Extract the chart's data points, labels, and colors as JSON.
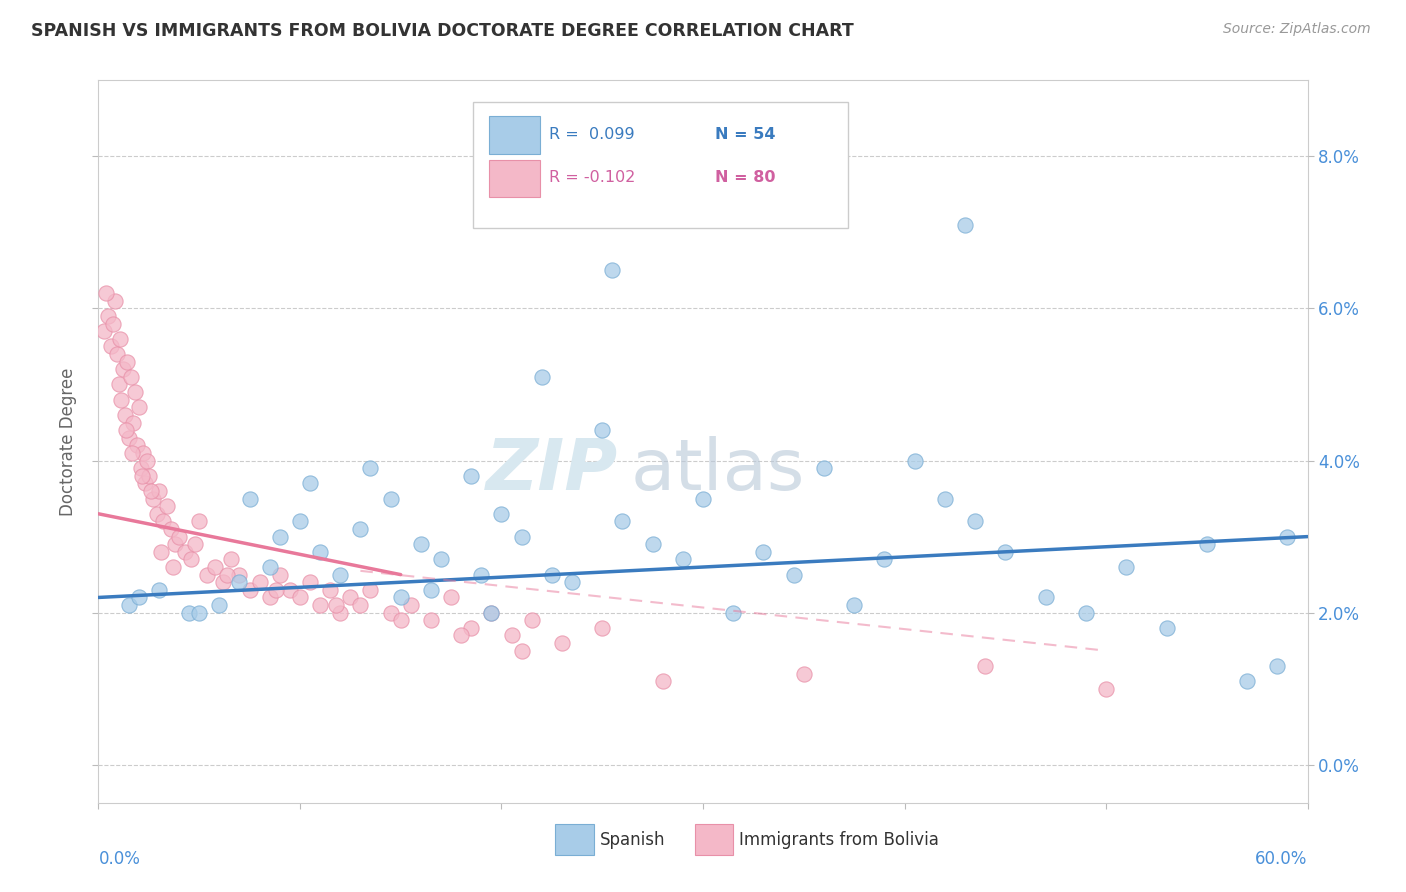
{
  "title": "SPANISH VS IMMIGRANTS FROM BOLIVIA DOCTORATE DEGREE CORRELATION CHART",
  "source": "Source: ZipAtlas.com",
  "ylabel": "Doctorate Degree",
  "ytick_vals": [
    0.0,
    2.0,
    4.0,
    6.0,
    8.0
  ],
  "xlim": [
    0.0,
    60.0
  ],
  "ylim": [
    -0.5,
    9.0
  ],
  "blue_color": "#a8cce8",
  "pink_color": "#f4b8c8",
  "blue_edge": "#7aaed4",
  "pink_edge": "#e890a8",
  "blue_line_color": "#3a7bbf",
  "pink_line_color": "#e8789a",
  "background_color": "#ffffff",
  "watermark_zip": "ZIP",
  "watermark_atlas": "atlas",
  "blue_r": "R =  0.099",
  "blue_n": "N = 54",
  "pink_r": "R = -0.102",
  "pink_n": "N = 80",
  "blue_scatter_x": [
    1.5,
    2.0,
    3.0,
    4.5,
    6.0,
    7.0,
    8.5,
    9.0,
    10.0,
    11.0,
    12.0,
    13.0,
    14.5,
    15.0,
    16.0,
    17.0,
    18.5,
    19.0,
    20.0,
    21.0,
    22.0,
    23.5,
    25.0,
    26.0,
    27.5,
    29.0,
    30.0,
    31.5,
    33.0,
    34.5,
    36.0,
    37.5,
    39.0,
    40.5,
    42.0,
    43.5,
    45.0,
    47.0,
    49.0,
    51.0,
    53.0,
    55.0,
    57.0,
    59.0,
    5.0,
    7.5,
    10.5,
    13.5,
    16.5,
    19.5,
    22.5,
    25.5,
    43.0,
    58.5
  ],
  "blue_scatter_y": [
    2.1,
    2.2,
    2.3,
    2.0,
    2.1,
    2.4,
    2.6,
    3.0,
    3.2,
    2.8,
    2.5,
    3.1,
    3.5,
    2.2,
    2.9,
    2.7,
    3.8,
    2.5,
    3.3,
    3.0,
    5.1,
    2.4,
    4.4,
    3.2,
    2.9,
    2.7,
    3.5,
    2.0,
    2.8,
    2.5,
    3.9,
    2.1,
    2.7,
    4.0,
    3.5,
    3.2,
    2.8,
    2.2,
    2.0,
    2.6,
    1.8,
    2.9,
    1.1,
    3.0,
    2.0,
    3.5,
    3.7,
    3.9,
    2.3,
    2.0,
    2.5,
    6.5,
    7.1,
    1.3
  ],
  "pink_scatter_x": [
    0.3,
    0.5,
    0.6,
    0.8,
    0.9,
    1.0,
    1.1,
    1.2,
    1.3,
    1.4,
    1.5,
    1.6,
    1.7,
    1.8,
    1.9,
    2.0,
    2.1,
    2.2,
    2.3,
    2.4,
    2.5,
    2.7,
    2.9,
    3.0,
    3.2,
    3.4,
    3.6,
    3.8,
    4.0,
    4.3,
    4.6,
    5.0,
    5.4,
    5.8,
    6.2,
    6.6,
    7.0,
    7.5,
    8.0,
    8.5,
    9.0,
    9.5,
    10.0,
    10.5,
    11.0,
    11.5,
    12.0,
    12.5,
    13.0,
    13.5,
    14.5,
    15.5,
    16.5,
    17.5,
    18.5,
    19.5,
    20.5,
    21.5,
    23.0,
    25.0,
    0.4,
    0.7,
    1.05,
    1.35,
    1.65,
    2.15,
    2.6,
    3.1,
    3.7,
    4.8,
    6.4,
    8.8,
    11.8,
    15.0,
    18.0,
    21.0,
    28.0,
    35.0,
    44.0,
    50.0
  ],
  "pink_scatter_y": [
    5.7,
    5.9,
    5.5,
    6.1,
    5.4,
    5.0,
    4.8,
    5.2,
    4.6,
    5.3,
    4.3,
    5.1,
    4.5,
    4.9,
    4.2,
    4.7,
    3.9,
    4.1,
    3.7,
    4.0,
    3.8,
    3.5,
    3.3,
    3.6,
    3.2,
    3.4,
    3.1,
    2.9,
    3.0,
    2.8,
    2.7,
    3.2,
    2.5,
    2.6,
    2.4,
    2.7,
    2.5,
    2.3,
    2.4,
    2.2,
    2.5,
    2.3,
    2.2,
    2.4,
    2.1,
    2.3,
    2.0,
    2.2,
    2.1,
    2.3,
    2.0,
    2.1,
    1.9,
    2.2,
    1.8,
    2.0,
    1.7,
    1.9,
    1.6,
    1.8,
    6.2,
    5.8,
    5.6,
    4.4,
    4.1,
    3.8,
    3.6,
    2.8,
    2.6,
    2.9,
    2.5,
    2.3,
    2.1,
    1.9,
    1.7,
    1.5,
    1.1,
    1.2,
    1.3,
    1.0
  ]
}
